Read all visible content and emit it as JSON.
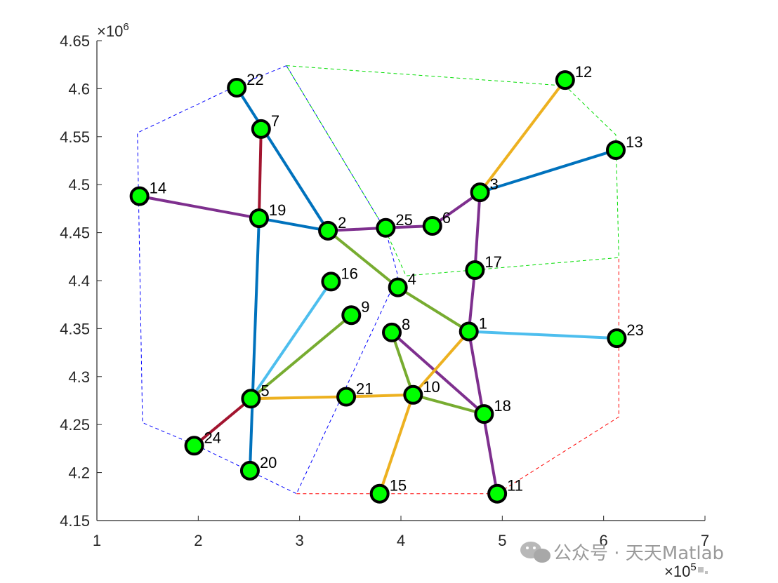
{
  "chart_data": {
    "type": "scatter",
    "xlim": [
      1,
      7
    ],
    "ylim": [
      4.15,
      4.65
    ],
    "x_exponent_label": "×10",
    "x_exponent_power": "5",
    "y_exponent_label": "×10",
    "y_exponent_power": "6",
    "xticks": [
      "1",
      "2",
      "3",
      "4",
      "5",
      "6",
      "7"
    ],
    "yticks": [
      "4.15",
      "4.2",
      "4.25",
      "4.3",
      "4.35",
      "4.4",
      "4.45",
      "4.5",
      "4.55",
      "4.6",
      "4.65"
    ],
    "grid": false,
    "node_color": "#00ff00",
    "node_edge_color": "#000000",
    "nodes": [
      {
        "id": "1",
        "x": 4.67,
        "y": 4.347
      },
      {
        "id": "2",
        "x": 3.28,
        "y": 4.452
      },
      {
        "id": "3",
        "x": 4.78,
        "y": 4.492
      },
      {
        "id": "4",
        "x": 3.97,
        "y": 4.393
      },
      {
        "id": "5",
        "x": 2.52,
        "y": 4.277
      },
      {
        "id": "6",
        "x": 4.31,
        "y": 4.457
      },
      {
        "id": "7",
        "x": 2.62,
        "y": 4.558
      },
      {
        "id": "8",
        "x": 3.91,
        "y": 4.346
      },
      {
        "id": "9",
        "x": 3.51,
        "y": 4.364
      },
      {
        "id": "10",
        "x": 4.12,
        "y": 4.281
      },
      {
        "id": "11",
        "x": 4.95,
        "y": 4.178
      },
      {
        "id": "12",
        "x": 5.62,
        "y": 4.609
      },
      {
        "id": "13",
        "x": 6.12,
        "y": 4.536
      },
      {
        "id": "14",
        "x": 1.42,
        "y": 4.488
      },
      {
        "id": "15",
        "x": 3.79,
        "y": 4.178
      },
      {
        "id": "16",
        "x": 3.31,
        "y": 4.399
      },
      {
        "id": "17",
        "x": 4.73,
        "y": 4.411
      },
      {
        "id": "18",
        "x": 4.82,
        "y": 4.261
      },
      {
        "id": "19",
        "x": 2.6,
        "y": 4.465
      },
      {
        "id": "20",
        "x": 2.51,
        "y": 4.202
      },
      {
        "id": "21",
        "x": 3.46,
        "y": 4.279
      },
      {
        "id": "22",
        "x": 2.38,
        "y": 4.601
      },
      {
        "id": "23",
        "x": 6.13,
        "y": 4.34
      },
      {
        "id": "24",
        "x": 1.96,
        "y": 4.228
      },
      {
        "id": "25",
        "x": 3.85,
        "y": 4.455
      }
    ],
    "edges": [
      {
        "from": "22",
        "to": "2",
        "color": "#0072bd"
      },
      {
        "from": "19",
        "to": "2",
        "color": "#0072bd"
      },
      {
        "from": "19",
        "to": "20",
        "color": "#0072bd"
      },
      {
        "from": "3",
        "to": "13",
        "color": "#0072bd"
      },
      {
        "from": "7",
        "to": "19",
        "color": "#a2142f"
      },
      {
        "from": "5",
        "to": "24",
        "color": "#a2142f"
      },
      {
        "from": "14",
        "to": "19",
        "color": "#7e2f8e"
      },
      {
        "from": "25",
        "to": "6",
        "color": "#7e2f8e"
      },
      {
        "from": "6",
        "to": "3",
        "color": "#7e2f8e"
      },
      {
        "from": "3",
        "to": "17",
        "color": "#7e2f8e"
      },
      {
        "from": "17",
        "to": "1",
        "color": "#7e2f8e"
      },
      {
        "from": "1",
        "to": "11",
        "color": "#7e2f8e"
      },
      {
        "from": "8",
        "to": "18",
        "color": "#7e2f8e"
      },
      {
        "from": "2",
        "to": "25",
        "color": "#7e2f8e"
      },
      {
        "from": "2",
        "to": "4",
        "color": "#77ac30"
      },
      {
        "from": "4",
        "to": "1",
        "color": "#77ac30"
      },
      {
        "from": "9",
        "to": "5",
        "color": "#77ac30"
      },
      {
        "from": "8",
        "to": "10",
        "color": "#77ac30"
      },
      {
        "from": "10",
        "to": "18",
        "color": "#77ac30"
      },
      {
        "from": "5",
        "to": "21",
        "color": "#edb120"
      },
      {
        "from": "21",
        "to": "10",
        "color": "#edb120"
      },
      {
        "from": "10",
        "to": "1",
        "color": "#edb120"
      },
      {
        "from": "10",
        "to": "15",
        "color": "#edb120"
      },
      {
        "from": "3",
        "to": "12",
        "color": "#edb120"
      },
      {
        "from": "16",
        "to": "5",
        "color": "#4dbeee"
      },
      {
        "from": "1",
        "to": "23",
        "color": "#4dbeee"
      }
    ],
    "regions": [
      {
        "color": "#0000ff",
        "points": [
          [
            2.87,
            4.624
          ],
          [
            2.4,
            4.604
          ],
          [
            1.4,
            4.554
          ],
          [
            1.45,
            4.252
          ],
          [
            1.99,
            4.228
          ],
          [
            2.97,
            4.178
          ],
          [
            3.97,
            4.405
          ],
          [
            3.85,
            4.452
          ],
          [
            2.87,
            4.624
          ]
        ]
      },
      {
        "color": "#00dd00",
        "points": [
          [
            2.87,
            4.624
          ],
          [
            5.62,
            4.603
          ],
          [
            6.12,
            4.552
          ],
          [
            6.15,
            4.424
          ],
          [
            4.05,
            4.405
          ],
          [
            3.85,
            4.452
          ],
          [
            2.87,
            4.624
          ]
        ]
      },
      {
        "color": "#ff0000",
        "points": [
          [
            2.97,
            4.178
          ],
          [
            4.95,
            4.178
          ],
          [
            6.15,
            4.258
          ],
          [
            6.15,
            4.424
          ]
        ]
      }
    ]
  },
  "watermark": {
    "logo_icon": "wechat-icon",
    "text": "公众号 · 天天Matlab"
  },
  "corner_badge_icon": "qr-overlay-icon"
}
